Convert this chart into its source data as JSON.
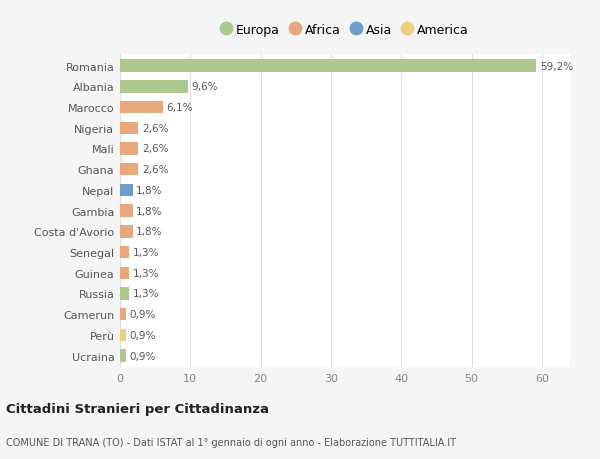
{
  "countries": [
    "Romania",
    "Albania",
    "Marocco",
    "Nigeria",
    "Mali",
    "Ghana",
    "Nepal",
    "Gambia",
    "Costa d'Avorio",
    "Senegal",
    "Guinea",
    "Russia",
    "Camerun",
    "Perù",
    "Ucraina"
  ],
  "values": [
    59.2,
    9.6,
    6.1,
    2.6,
    2.6,
    2.6,
    1.8,
    1.8,
    1.8,
    1.3,
    1.3,
    1.3,
    0.9,
    0.9,
    0.9
  ],
  "labels": [
    "59,2%",
    "9,6%",
    "6,1%",
    "2,6%",
    "2,6%",
    "2,6%",
    "1,8%",
    "1,8%",
    "1,8%",
    "1,3%",
    "1,3%",
    "1,3%",
    "0,9%",
    "0,9%",
    "0,9%"
  ],
  "continents": [
    "Europa",
    "Europa",
    "Africa",
    "Africa",
    "Africa",
    "Africa",
    "Asia",
    "Africa",
    "Africa",
    "Africa",
    "Africa",
    "Europa",
    "Africa",
    "America",
    "Europa"
  ],
  "continent_colors": {
    "Europa": "#adc990",
    "Africa": "#e8a87c",
    "Asia": "#6e9dc9",
    "America": "#f0d080"
  },
  "legend_order": [
    "Europa",
    "Africa",
    "Asia",
    "America"
  ],
  "bg_color": "#f5f5f5",
  "bar_bg_color": "#ffffff",
  "grid_color": "#dddddd",
  "title": "Cittadini Stranieri per Cittadinanza",
  "subtitle": "COMUNE DI TRANA (TO) - Dati ISTAT al 1° gennaio di ogni anno - Elaborazione TUTTITALIA.IT",
  "xlabel_ticks": [
    0,
    10,
    20,
    30,
    40,
    50,
    60
  ],
  "xlim": [
    0,
    64
  ]
}
